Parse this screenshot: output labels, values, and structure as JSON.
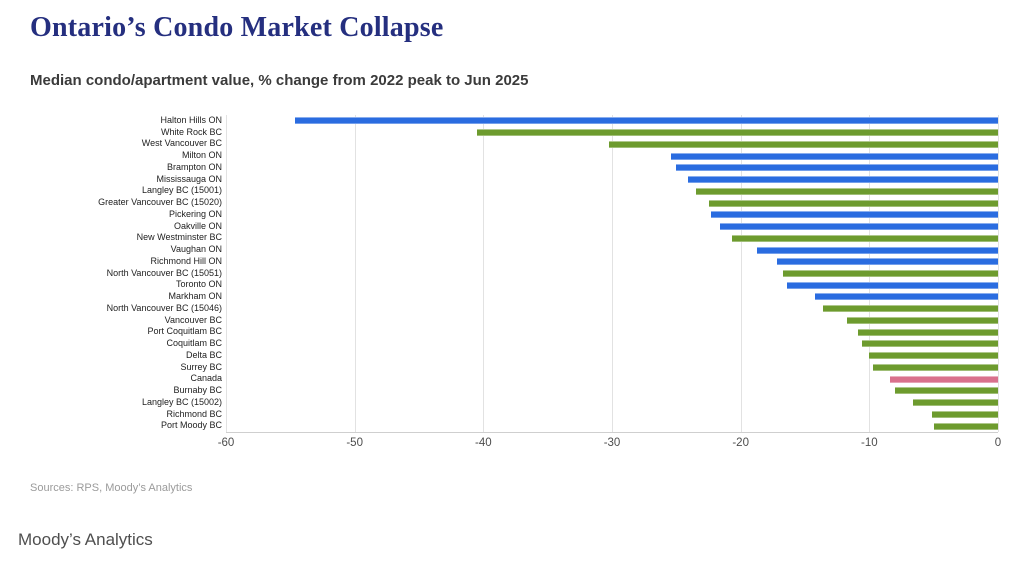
{
  "header": {
    "title": "Ontario’s Condo Market Collapse",
    "subtitle": "Median condo/apartment value, % change from 2022 peak to Jun 2025"
  },
  "footer": {
    "sources": "Sources: RPS, Moody’s Analytics",
    "brand": "Moody’s Analytics"
  },
  "chart_data": {
    "type": "bar",
    "orientation": "horizontal",
    "title": "Ontario’s Condo Market Collapse",
    "subtitle": "Median condo/apartment value, % change from 2022 peak to Jun 2025",
    "xlabel": "",
    "ylabel": "",
    "xlim": [
      -60,
      0
    ],
    "x_ticks": [
      -60,
      -50,
      -40,
      -30,
      -20,
      -10,
      0
    ],
    "grid": true,
    "legend": "none",
    "colors": {
      "ontario": "#2a6ce0",
      "bc": "#6d9b2e",
      "canada": "#d9718c",
      "gridline": "#e2e2e2",
      "title": "#252f7f"
    },
    "items": [
      {
        "label": "Halton Hills ON",
        "value": -54.6,
        "group": "ontario"
      },
      {
        "label": "White Rock BC",
        "value": -40.5,
        "group": "bc"
      },
      {
        "label": "West Vancouver BC",
        "value": -30.2,
        "group": "bc"
      },
      {
        "label": "Milton ON",
        "value": -25.4,
        "group": "ontario"
      },
      {
        "label": "Brampton ON",
        "value": -25.0,
        "group": "ontario"
      },
      {
        "label": "Mississauga ON",
        "value": -24.1,
        "group": "ontario"
      },
      {
        "label": "Langley BC (15001)",
        "value": -23.5,
        "group": "bc"
      },
      {
        "label": "Greater Vancouver BC (15020)",
        "value": -22.5,
        "group": "bc"
      },
      {
        "label": "Pickering ON",
        "value": -22.3,
        "group": "ontario"
      },
      {
        "label": "Oakville ON",
        "value": -21.6,
        "group": "ontario"
      },
      {
        "label": "New Westminster BC",
        "value": -20.7,
        "group": "bc"
      },
      {
        "label": "Vaughan ON",
        "value": -18.7,
        "group": "ontario"
      },
      {
        "label": "Richmond Hill ON",
        "value": -17.2,
        "group": "ontario"
      },
      {
        "label": "North Vancouver BC (15051)",
        "value": -16.7,
        "group": "bc"
      },
      {
        "label": "Toronto ON",
        "value": -16.4,
        "group": "ontario"
      },
      {
        "label": "Markham ON",
        "value": -14.2,
        "group": "ontario"
      },
      {
        "label": "North Vancouver BC (15046)",
        "value": -13.6,
        "group": "bc"
      },
      {
        "label": "Vancouver BC",
        "value": -11.7,
        "group": "bc"
      },
      {
        "label": "Port Coquitlam BC",
        "value": -10.9,
        "group": "bc"
      },
      {
        "label": "Coquitlam BC",
        "value": -10.6,
        "group": "bc"
      },
      {
        "label": "Delta BC",
        "value": -10.0,
        "group": "bc"
      },
      {
        "label": "Surrey BC",
        "value": -9.7,
        "group": "bc"
      },
      {
        "label": "Canada",
        "value": -8.4,
        "group": "canada"
      },
      {
        "label": "Burnaby BC",
        "value": -8.0,
        "group": "bc"
      },
      {
        "label": "Langley BC (15002)",
        "value": -6.6,
        "group": "bc"
      },
      {
        "label": "Richmond BC",
        "value": -5.1,
        "group": "bc"
      },
      {
        "label": "Port Moody BC",
        "value": -5.0,
        "group": "bc"
      }
    ]
  }
}
